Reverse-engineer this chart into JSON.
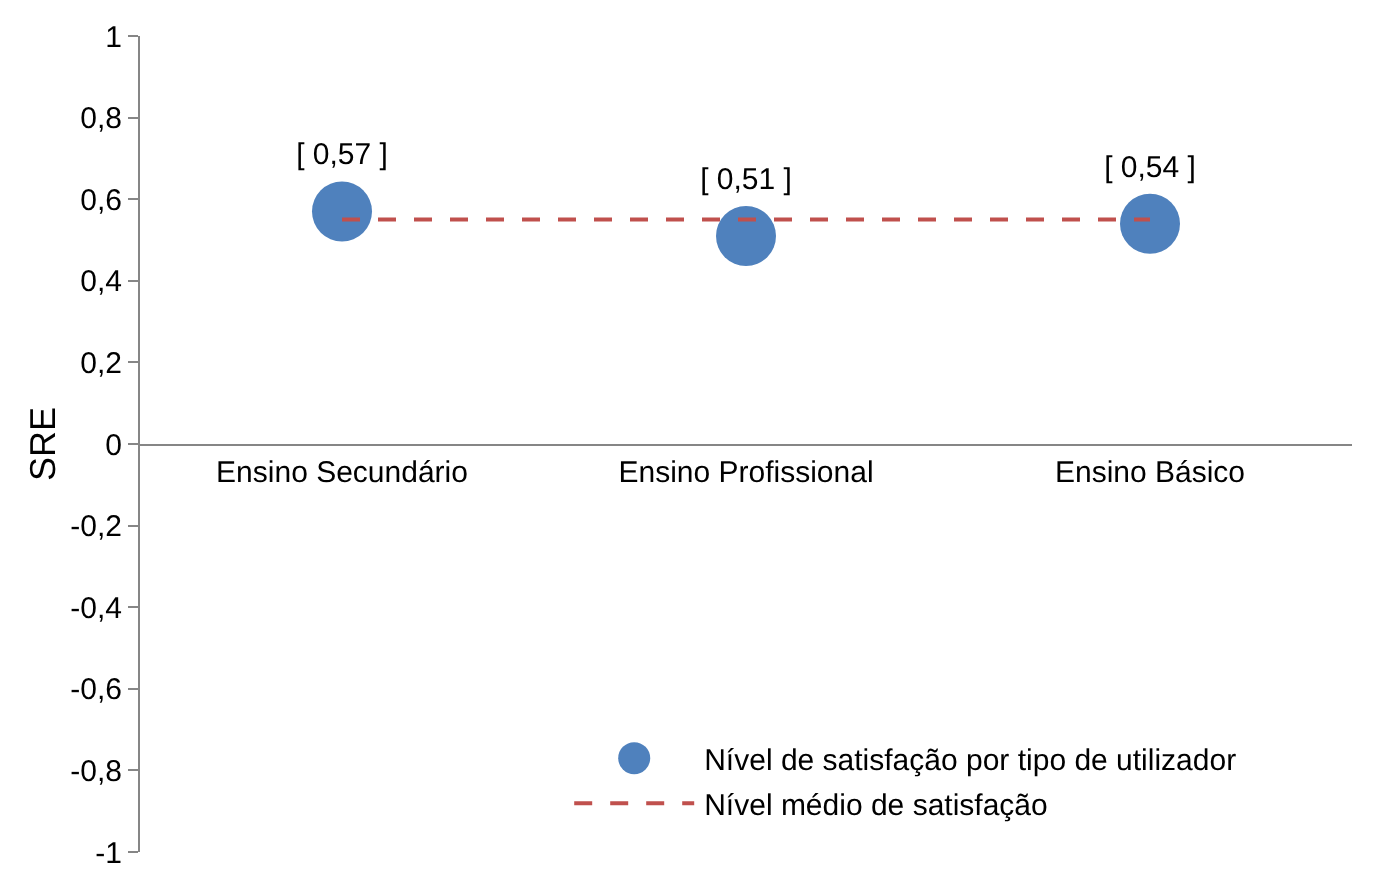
{
  "chart_data": {
    "type": "scatter",
    "ylabel": "SRE",
    "categories": [
      "Ensino Secundário",
      "Ensino Profissional",
      "Ensino Básico"
    ],
    "series": [
      {
        "name": "Nível de satisfação por tipo de utilizador",
        "color": "#4f81bd",
        "marker": "circle",
        "values": [
          0.57,
          0.51,
          0.54
        ],
        "value_labels": [
          "[ 0,57 ]",
          "[ 0,51 ]",
          "[ 0,54 ]"
        ]
      },
      {
        "name": "Nível médio de satisfação",
        "type": "line",
        "color": "#c0504d",
        "marker": "none",
        "line_style": "dashed",
        "values": [
          0.55,
          0.55,
          0.55
        ]
      }
    ],
    "ylim": [
      -1,
      1
    ],
    "yticks": [
      -1,
      {
        "value": -0.8,
        "label": "-0,8"
      },
      {
        "value": -0.6,
        "label": "-0,6"
      },
      {
        "value": -0.4,
        "label": "-0,4"
      },
      {
        "value": -0.2,
        "label": "-0,2"
      },
      0,
      {
        "value": 0.2,
        "label": "0,2"
      },
      {
        "value": 0.4,
        "label": "0,4"
      },
      {
        "value": 0.6,
        "label": "0,6"
      },
      {
        "value": 0.8,
        "label": "0,8"
      },
      1
    ],
    "legend": "bottom"
  }
}
